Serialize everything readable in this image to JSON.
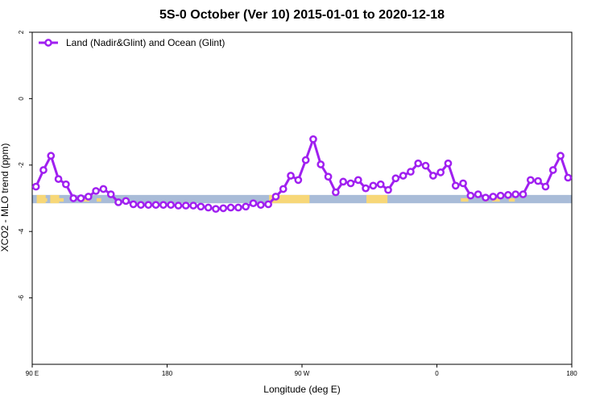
{
  "chart_data": {
    "type": "line",
    "title": "5S-0 October (Ver 10)   2015-01-01 to 2020-12-18",
    "xlabel": "Longitude (deg E)",
    "ylabel": "XCO2 - MLO trend (ppm)",
    "xlim": [
      0,
      360
    ],
    "ylim": [
      -8,
      2
    ],
    "x_ticks": [
      {
        "pos": 0,
        "label": "90 E"
      },
      {
        "pos": 90,
        "label": "180"
      },
      {
        "pos": 180,
        "label": "90 W"
      },
      {
        "pos": 270,
        "label": "0"
      },
      {
        "pos": 360,
        "label": "180"
      }
    ],
    "x_ticks_extra": [
      {
        "pos": 360,
        "label": "180"
      }
    ],
    "y_ticks": [
      2,
      0,
      -2,
      -4,
      -6
    ],
    "legend": {
      "position": "top-left",
      "label": "Land (Nadir&Glint) and Ocean (Glint)"
    },
    "series": [
      {
        "name": "Land (Nadir&Glint) and Ocean (Glint)",
        "color": "#a020f0",
        "x": [
          2.5,
          7.5,
          12.5,
          17.5,
          22.5,
          27.5,
          32.5,
          37.5,
          42.5,
          47.5,
          52.5,
          57.5,
          62.5,
          67.5,
          72.5,
          77.5,
          82.5,
          87.5,
          92.5,
          97.5,
          102.5,
          107.5,
          112.5,
          117.5,
          122.5,
          127.5,
          132.5,
          137.5,
          142.5,
          147.5,
          152.5,
          157.5,
          162.5,
          167.5,
          172.5,
          177.5,
          182.5,
          187.5,
          192.5,
          197.5,
          202.5,
          207.5,
          212.5,
          217.5,
          222.5,
          227.5,
          232.5,
          237.5,
          242.5,
          247.5,
          252.5,
          257.5,
          262.5,
          267.5,
          272.5,
          277.5,
          282.5,
          287.5,
          292.5,
          297.5,
          302.5,
          307.5,
          312.5,
          317.5,
          322.5,
          327.5,
          332.5,
          337.5,
          342.5,
          347.5,
          352.5,
          357.5
        ],
        "y": [
          -2.65,
          -2.15,
          -1.72,
          -2.42,
          -2.58,
          -3.0,
          -3.0,
          -2.95,
          -2.78,
          -2.72,
          -2.88,
          -3.12,
          -3.08,
          -3.18,
          -3.2,
          -3.2,
          -3.2,
          -3.2,
          -3.2,
          -3.22,
          -3.22,
          -3.22,
          -3.25,
          -3.28,
          -3.32,
          -3.3,
          -3.28,
          -3.28,
          -3.25,
          -3.15,
          -3.2,
          -3.18,
          -2.95,
          -2.72,
          -2.32,
          -2.45,
          -1.85,
          -1.22,
          -1.98,
          -2.35,
          -2.82,
          -2.5,
          -2.55,
          -2.45,
          -2.7,
          -2.62,
          -2.58,
          -2.75,
          -2.4,
          -2.32,
          -2.2,
          -1.95,
          -2.02,
          -2.32,
          -2.22,
          -1.95,
          -2.62,
          -2.55,
          -2.92,
          -2.88,
          -2.98,
          -2.95,
          -2.92,
          -2.9,
          -2.88,
          -2.88,
          -2.45,
          -2.48,
          -2.65,
          -2.15,
          -1.72,
          -2.38
        ]
      }
    ]
  },
  "colors": {
    "background": "#ffffff",
    "ocean_band": "#a9bcd8",
    "land_band": "#f7d778",
    "series": "#a020f0"
  }
}
